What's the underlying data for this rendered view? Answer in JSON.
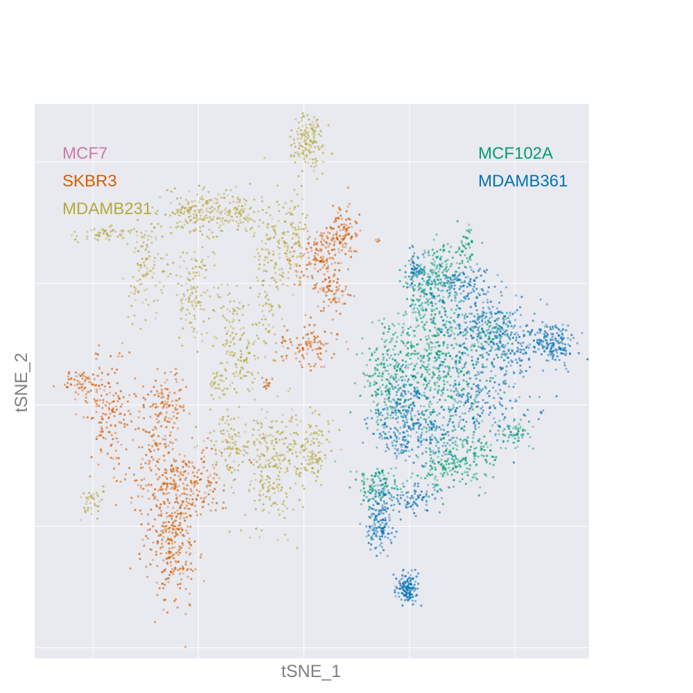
{
  "chart_data": {
    "type": "scatter",
    "title": "",
    "xlabel": "tSNE_1",
    "ylabel": "tSNE_2",
    "xlim": [
      -55,
      50
    ],
    "ylim": [
      -55,
      50
    ],
    "grid": true,
    "show_tick_labels": false,
    "background": "#e9e9f0",
    "legend_left": {
      "placement": "top-left",
      "entries": [
        {
          "name": "MCF7",
          "color": "#cc79a7"
        },
        {
          "name": "SKBR3",
          "color": "#d55e00"
        },
        {
          "name": "MDAMB231",
          "color": "#b5a93b"
        }
      ]
    },
    "legend_right": {
      "placement": "top-right",
      "entries": [
        {
          "name": "MCF102A",
          "color": "#009e73"
        },
        {
          "name": "MDAMB361",
          "color": "#0072b2"
        }
      ]
    },
    "series": [
      {
        "name": "MDAMB231",
        "color": "#b5a93b",
        "clusters": [
          {
            "x": -3.1,
            "y": 42.8,
            "sx": 1.6,
            "sy": 3.0,
            "n": 140
          },
          {
            "x": -41.5,
            "y": 25.5,
            "sx": 2.5,
            "sy": 0.8,
            "n": 50
          },
          {
            "x": -34.0,
            "y": 19.5,
            "sx": 2.0,
            "sy": 5.5,
            "n": 120
          },
          {
            "x": -25.0,
            "y": 29.5,
            "sx": 2.5,
            "sy": 2.2,
            "n": 140
          },
          {
            "x": -25.0,
            "y": 14.5,
            "sx": 2.0,
            "sy": 4.5,
            "n": 120
          },
          {
            "x": -17.0,
            "y": 29.5,
            "sx": 3.0,
            "sy": 2.2,
            "n": 120
          },
          {
            "x": -6.5,
            "y": 24.5,
            "sx": 1.8,
            "sy": 4.5,
            "n": 110
          },
          {
            "x": -10.5,
            "y": 16.5,
            "sx": 1.5,
            "sy": 7.5,
            "n": 120
          },
          {
            "x": -17.5,
            "y": 6.0,
            "sx": 1.8,
            "sy": 5.0,
            "n": 100
          },
          {
            "x": -20.0,
            "y": -3.0,
            "sx": 1.0,
            "sy": 2.0,
            "n": 30
          },
          {
            "x": -18.0,
            "y": -14.0,
            "sx": 2.5,
            "sy": 3.5,
            "n": 100
          },
          {
            "x": -10.5,
            "y": -21.0,
            "sx": 2.5,
            "sy": 5.5,
            "n": 150
          },
          {
            "x": -7.0,
            "y": -14.0,
            "sx": 4.0,
            "sy": 3.5,
            "n": 140
          },
          {
            "x": -2.0,
            "y": -16.0,
            "sx": 1.5,
            "sy": 3.0,
            "n": 70
          },
          {
            "x": -44.5,
            "y": -25.5,
            "sx": 0.9,
            "sy": 1.8,
            "n": 40
          },
          {
            "x": -15.0,
            "y": 1.0,
            "sx": 1.0,
            "sy": 2.5,
            "n": 40
          }
        ]
      },
      {
        "name": "SKBR3",
        "color": "#d55e00",
        "clusters": [
          {
            "x": -0.5,
            "y": 21.0,
            "sx": 2.5,
            "sy": 3.5,
            "n": 150
          },
          {
            "x": 3.5,
            "y": 26.0,
            "sx": 1.5,
            "sy": 2.5,
            "n": 90
          },
          {
            "x": 1.5,
            "y": 14.0,
            "sx": 1.5,
            "sy": 2.0,
            "n": 60
          },
          {
            "x": -3.5,
            "y": 4.5,
            "sx": 2.5,
            "sy": 2.5,
            "n": 100
          },
          {
            "x": -46.5,
            "y": -2.5,
            "sx": 2.0,
            "sy": 1.5,
            "n": 60
          },
          {
            "x": -41.0,
            "y": -8.0,
            "sx": 2.5,
            "sy": 5.0,
            "n": 150
          },
          {
            "x": -30.0,
            "y": -7.0,
            "sx": 2.0,
            "sy": 3.0,
            "n": 110
          },
          {
            "x": -32.5,
            "y": -13.5,
            "sx": 1.5,
            "sy": 2.5,
            "n": 60
          },
          {
            "x": -27.5,
            "y": -22.0,
            "sx": 4.5,
            "sy": 3.5,
            "n": 260
          },
          {
            "x": -29.0,
            "y": -33.5,
            "sx": 2.5,
            "sy": 5.5,
            "n": 260
          },
          {
            "x": -11.0,
            "y": -2.5,
            "sx": 0.5,
            "sy": 1.0,
            "n": 15
          },
          {
            "x": 10.0,
            "y": 24.0,
            "sx": 0.3,
            "sy": 0.3,
            "n": 4
          }
        ]
      },
      {
        "name": "MCF102A",
        "color": "#009e73",
        "clusters": [
          {
            "x": 21.5,
            "y": 18.5,
            "sx": 2.5,
            "sy": 2.5,
            "n": 150
          },
          {
            "x": 19.0,
            "y": 13.0,
            "sx": 1.5,
            "sy": 3.0,
            "n": 80
          },
          {
            "x": 26.5,
            "y": 23.0,
            "sx": 1.0,
            "sy": 2.0,
            "n": 50
          },
          {
            "x": 19.0,
            "y": 5.0,
            "sx": 4.0,
            "sy": 4.0,
            "n": 200
          },
          {
            "x": 21.0,
            "y": -4.0,
            "sx": 5.5,
            "sy": 6.0,
            "n": 340
          },
          {
            "x": 11.5,
            "y": -2.0,
            "sx": 2.0,
            "sy": 4.0,
            "n": 150
          },
          {
            "x": 10.0,
            "y": -22.0,
            "sx": 2.5,
            "sy": 2.0,
            "n": 100
          },
          {
            "x": 22.5,
            "y": -19.0,
            "sx": 2.0,
            "sy": 2.5,
            "n": 100
          },
          {
            "x": 27.5,
            "y": -17.0,
            "sx": 2.5,
            "sy": 2.5,
            "n": 120
          },
          {
            "x": 35.5,
            "y": -12.5,
            "sx": 2.0,
            "sy": 1.5,
            "n": 60
          },
          {
            "x": 31.0,
            "y": 6.5,
            "sx": 2.5,
            "sy": 2.5,
            "n": 80
          }
        ]
      },
      {
        "name": "MDAMB361",
        "color": "#0072b2",
        "clusters": [
          {
            "x": 17.0,
            "y": 18.0,
            "sx": 1.2,
            "sy": 2.0,
            "n": 60
          },
          {
            "x": 25.0,
            "y": 15.5,
            "sx": 3.0,
            "sy": 2.0,
            "n": 120
          },
          {
            "x": 28.5,
            "y": 8.0,
            "sx": 3.5,
            "sy": 3.5,
            "n": 170
          },
          {
            "x": 35.0,
            "y": 5.5,
            "sx": 2.5,
            "sy": 3.5,
            "n": 140
          },
          {
            "x": 43.0,
            "y": 4.5,
            "sx": 2.2,
            "sy": 2.0,
            "n": 170
          },
          {
            "x": 29.0,
            "y": -5.0,
            "sx": 4.5,
            "sy": 4.5,
            "n": 220
          },
          {
            "x": 13.0,
            "y": -12.0,
            "sx": 2.5,
            "sy": 2.5,
            "n": 100
          },
          {
            "x": 15.0,
            "y": -6.0,
            "sx": 2.0,
            "sy": 3.0,
            "n": 100
          },
          {
            "x": 19.5,
            "y": -13.0,
            "sx": 2.5,
            "sy": 2.5,
            "n": 100
          },
          {
            "x": 11.0,
            "y": -26.0,
            "sx": 1.5,
            "sy": 2.5,
            "n": 90
          },
          {
            "x": 10.5,
            "y": -31.0,
            "sx": 1.2,
            "sy": 2.0,
            "n": 90
          },
          {
            "x": 17.5,
            "y": -25.0,
            "sx": 2.0,
            "sy": 1.5,
            "n": 70
          },
          {
            "x": 15.5,
            "y": -41.5,
            "sx": 1.0,
            "sy": 1.5,
            "n": 140
          },
          {
            "x": 41.0,
            "y": -8.0,
            "sx": 0.3,
            "sy": 0.3,
            "n": 4
          }
        ]
      }
    ]
  }
}
